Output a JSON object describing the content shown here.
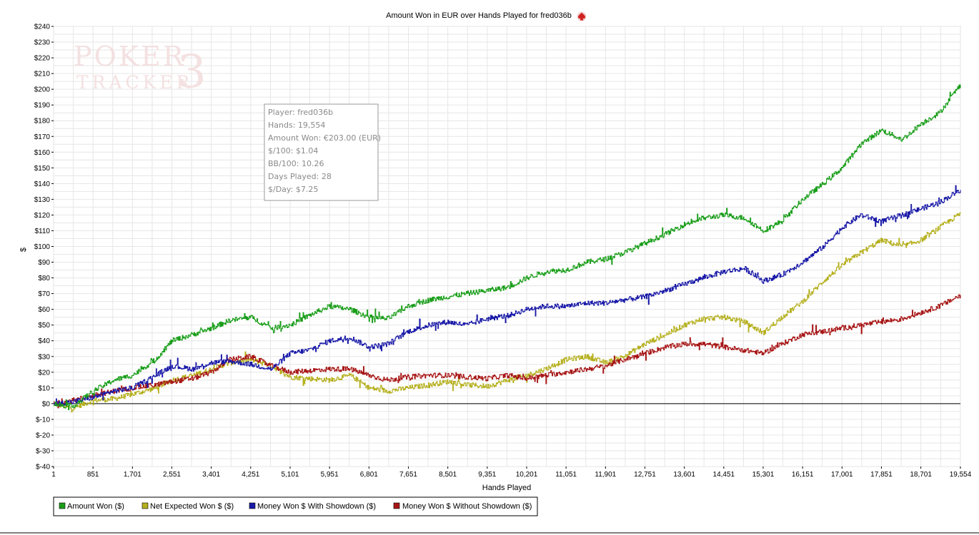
{
  "chart_data": {
    "type": "line",
    "title": "Amount Won in EUR over Hands Played for fred036b",
    "xlabel": "Hands Played",
    "ylabel": "$",
    "xlim": [
      1,
      19554
    ],
    "ylim": [
      -40,
      240
    ],
    "x_ticks": [
      1,
      851,
      1701,
      2551,
      3401,
      4251,
      5101,
      5951,
      6801,
      7651,
      8501,
      9351,
      10201,
      11051,
      11901,
      12751,
      13601,
      14451,
      15301,
      16151,
      17001,
      17851,
      18701,
      19554
    ],
    "x_tick_labels": [
      "1",
      "851",
      "1,701",
      "2,551",
      "3,401",
      "4,251",
      "5,101",
      "5,951",
      "6,801",
      "7,651",
      "8,501",
      "9,351",
      "10,201",
      "11,051",
      "11,901",
      "12,751",
      "13,601",
      "14,451",
      "15,301",
      "16,151",
      "17,001",
      "17,851",
      "18,701",
      "19,554"
    ],
    "y_ticks": [
      -40,
      -30,
      -20,
      -10,
      0,
      10,
      20,
      30,
      40,
      50,
      60,
      70,
      80,
      90,
      100,
      110,
      120,
      130,
      140,
      150,
      160,
      170,
      180,
      190,
      200,
      210,
      220,
      230,
      240
    ],
    "y_tick_labels": [
      "$-40",
      "$-30",
      "$-20",
      "$-10",
      "$0",
      "$10",
      "$20",
      "$30",
      "$40",
      "$50",
      "$60",
      "$70",
      "$80",
      "$90",
      "$100",
      "$110",
      "$120",
      "$130",
      "$140",
      "$150",
      "$160",
      "$170",
      "$180",
      "$190",
      "$200",
      "$210",
      "$220",
      "$230",
      "$240"
    ],
    "grid": true,
    "legend_position": "bottom-left",
    "x": [
      1,
      400,
      851,
      1300,
      1701,
      2200,
      2551,
      3000,
      3401,
      3800,
      4251,
      4700,
      5101,
      5500,
      5951,
      6400,
      6801,
      7200,
      7651,
      8100,
      8501,
      8900,
      9351,
      9800,
      10201,
      10600,
      11051,
      11500,
      11901,
      12300,
      12751,
      13200,
      13601,
      14000,
      14451,
      14900,
      15301,
      15700,
      16151,
      16600,
      17001,
      17400,
      17851,
      18300,
      18701,
      19100,
      19554
    ],
    "series": [
      {
        "name": "Amount Won ($)",
        "color": "#1a9e1a",
        "values": [
          0,
          -2,
          8,
          15,
          18,
          28,
          40,
          44,
          48,
          53,
          55,
          48,
          50,
          56,
          62,
          60,
          55,
          54,
          62,
          66,
          68,
          70,
          72,
          74,
          80,
          84,
          85,
          90,
          92,
          96,
          102,
          108,
          114,
          118,
          120,
          118,
          110,
          116,
          130,
          140,
          150,
          165,
          174,
          168,
          178,
          185,
          203
        ]
      },
      {
        "name": "Net Expected Won $ ($)",
        "color": "#b5b01e",
        "values": [
          0,
          -3,
          2,
          3,
          6,
          10,
          15,
          18,
          22,
          26,
          28,
          24,
          17,
          16,
          15,
          18,
          10,
          8,
          10,
          12,
          14,
          12,
          11,
          15,
          18,
          22,
          28,
          30,
          26,
          30,
          38,
          44,
          50,
          54,
          55,
          52,
          45,
          55,
          65,
          78,
          88,
          96,
          104,
          100,
          104,
          112,
          121
        ]
      },
      {
        "name": "Money Won $ With Showdown ($)",
        "color": "#1a1aa8",
        "values": [
          0,
          1,
          4,
          8,
          10,
          18,
          24,
          22,
          26,
          27,
          25,
          22,
          32,
          34,
          40,
          42,
          36,
          38,
          46,
          50,
          52,
          50,
          54,
          56,
          60,
          62,
          62,
          64,
          64,
          66,
          68,
          72,
          76,
          80,
          84,
          86,
          78,
          82,
          90,
          100,
          112,
          120,
          116,
          120,
          124,
          128,
          136
        ]
      },
      {
        "name": "Money Won $ Without Showdown ($)",
        "color": "#a81616",
        "values": [
          0,
          2,
          5,
          8,
          10,
          12,
          14,
          16,
          20,
          28,
          30,
          24,
          20,
          21,
          22,
          22,
          18,
          15,
          17,
          18,
          18,
          17,
          16,
          18,
          16,
          18,
          20,
          22,
          24,
          28,
          32,
          36,
          38,
          38,
          36,
          34,
          32,
          38,
          44,
          46,
          48,
          50,
          52,
          54,
          58,
          62,
          69
        ]
      }
    ]
  },
  "info_box": {
    "player": "Player: fred036b",
    "hands": "Hands: 19,554",
    "amount_won": "Amount Won: €203.00 (EUR)",
    "per100": "$/100: $1.04",
    "bb100": "BB/100: 10.26",
    "days": "Days Played: 28",
    "per_day": "$/Day: $7.25"
  },
  "watermark": {
    "line1": "POKER",
    "line2": "TRACKER",
    "numeral": "3"
  },
  "title_icon": "spade-icon",
  "colors": {
    "grid": "#e6e6e6",
    "watermark": "#f3dede"
  }
}
